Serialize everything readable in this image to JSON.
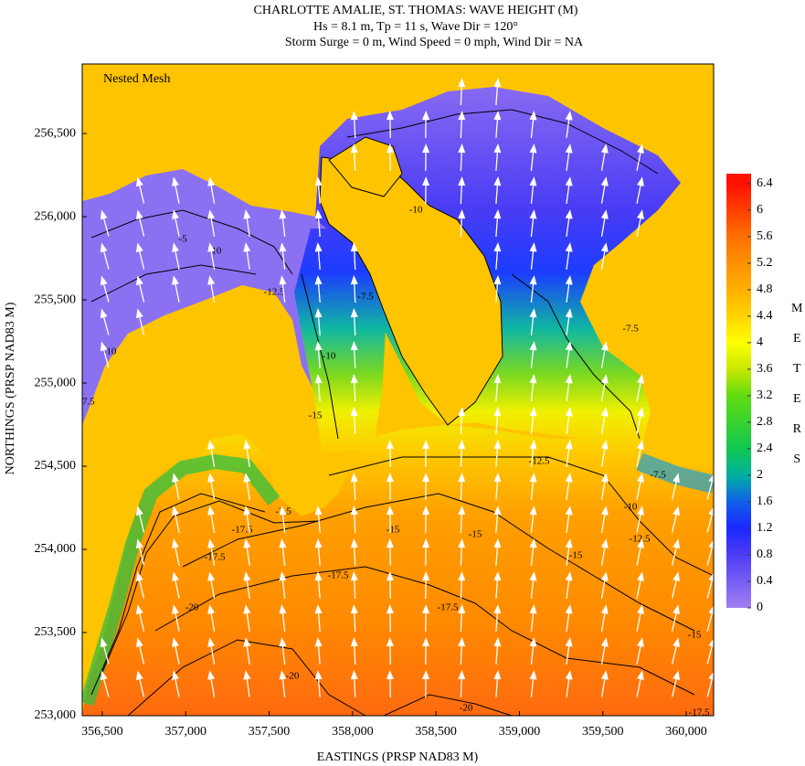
{
  "chart_data": {
    "type": "contour",
    "title": "CHARLOTTE AMALIE, ST. THOMAS: WAVE HEIGHT (M)",
    "subtitle": [
      "Hs = 8.1 m, Tp = 11 s, Wave Dir = 120°",
      "Storm Surge = 0 m, Wind Speed = 0 mph, Wind Dir = NA"
    ],
    "annotation": "Nested Mesh",
    "x_label": "EASTINGS (PRSP NAD83 M)",
    "y_label": "NORTHINGS (PRSP NAD83 M)",
    "xlim": [
      356380,
      360164
    ],
    "ylim": [
      253000,
      256918
    ],
    "xticks": [
      {
        "value": 356500,
        "label": "356,500"
      },
      {
        "value": 357000,
        "label": "357,000"
      },
      {
        "value": 357500,
        "label": "357,500"
      },
      {
        "value": 358000,
        "label": "358,000"
      },
      {
        "value": 358500,
        "label": "358,500"
      },
      {
        "value": 359000,
        "label": "359,000"
      },
      {
        "value": 359500,
        "label": "359,500"
      },
      {
        "value": 360000,
        "label": "360,000"
      }
    ],
    "yticks": [
      {
        "value": 253000,
        "label": "253,000"
      },
      {
        "value": 253500,
        "label": "253,500"
      },
      {
        "value": 254000,
        "label": "254,000"
      },
      {
        "value": 254500,
        "label": "254,500"
      },
      {
        "value": 255000,
        "label": "255,000"
      },
      {
        "value": 255500,
        "label": "255,500"
      },
      {
        "value": 256000,
        "label": "256,000"
      },
      {
        "value": 256500,
        "label": "256,500"
      }
    ],
    "colorbar": {
      "label": "METERS",
      "lim": [
        0,
        6.55
      ],
      "ticks": [
        0,
        0.4,
        0.8,
        1.2,
        1.6,
        2,
        2.4,
        2.8,
        3.2,
        3.6,
        4,
        4.4,
        4.8,
        5.2,
        5.6,
        6,
        6.4
      ],
      "colorscale": [
        [
          0,
          "#a07ff0"
        ],
        [
          0.8,
          "#4e3cf5"
        ],
        [
          1.2,
          "#1a28ff"
        ],
        [
          1.6,
          "#1060e8"
        ],
        [
          2,
          "#00b0a0"
        ],
        [
          2.4,
          "#10c850"
        ],
        [
          3.2,
          "#60dc10"
        ],
        [
          3.6,
          "#c8e800"
        ],
        [
          4,
          "#ffff00"
        ],
        [
          4.4,
          "#ffd400"
        ],
        [
          4.8,
          "#ffb000"
        ],
        [
          5.6,
          "#ff7000"
        ],
        [
          6.4,
          "#ff1000"
        ]
      ]
    },
    "contour_labels": [
      -10,
      -7.5,
      -5,
      -10,
      -12.5,
      -10,
      -15,
      -7.5,
      -10,
      -7.5,
      -2.5,
      -12.5,
      -15,
      -17.5,
      -17.5,
      -15,
      -17.5,
      -17.5,
      -20,
      -20,
      -20,
      -15,
      -12.5,
      -10,
      -7.5,
      -15,
      -17.5
    ]
  }
}
